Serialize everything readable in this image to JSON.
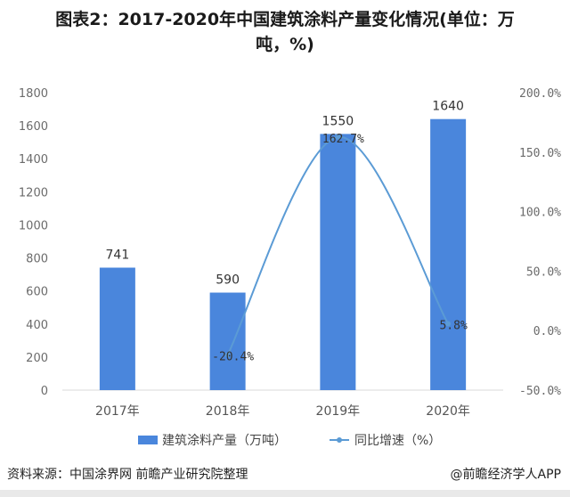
{
  "title_line1": "图表2：2017-2020年中国建筑涂料产量变化情况(单位：万",
  "title_line2": "吨，%)",
  "chart_data": {
    "type": "bar",
    "categories": [
      "2017年",
      "2018年",
      "2019年",
      "2020年"
    ],
    "series": [
      {
        "name": "建筑涂料产量（万吨）",
        "type": "bar",
        "axis": "left",
        "values": [
          741,
          590,
          1550,
          1640
        ],
        "labels": [
          "741",
          "590",
          "1550",
          "1640"
        ]
      },
      {
        "name": "同比增速（%）",
        "type": "line",
        "axis": "right",
        "values": [
          null,
          -20.4,
          162.7,
          5.8
        ],
        "labels": [
          "",
          "-20.4%",
          "162.7%",
          "5.8%"
        ]
      }
    ],
    "ylim": [
      0,
      1800
    ],
    "yticks": [
      "0",
      "200",
      "400",
      "600",
      "800",
      "1000",
      "1200",
      "1400",
      "1600",
      "1800"
    ],
    "y2lim": [
      -50,
      200
    ],
    "y2ticks": [
      "-50.0%",
      "0.0%",
      "50.0%",
      "100.0%",
      "150.0%",
      "200.0%"
    ],
    "grid": false,
    "legend": "bottom"
  },
  "colors": {
    "bar": "#4a86dc",
    "line": "#5b9bd5",
    "axis_text": "#6b6b6b"
  },
  "footer": {
    "source": "资料来源：中国涂界网 前瞻产业研究院整理",
    "brand": "@前瞻经济学人APP"
  }
}
